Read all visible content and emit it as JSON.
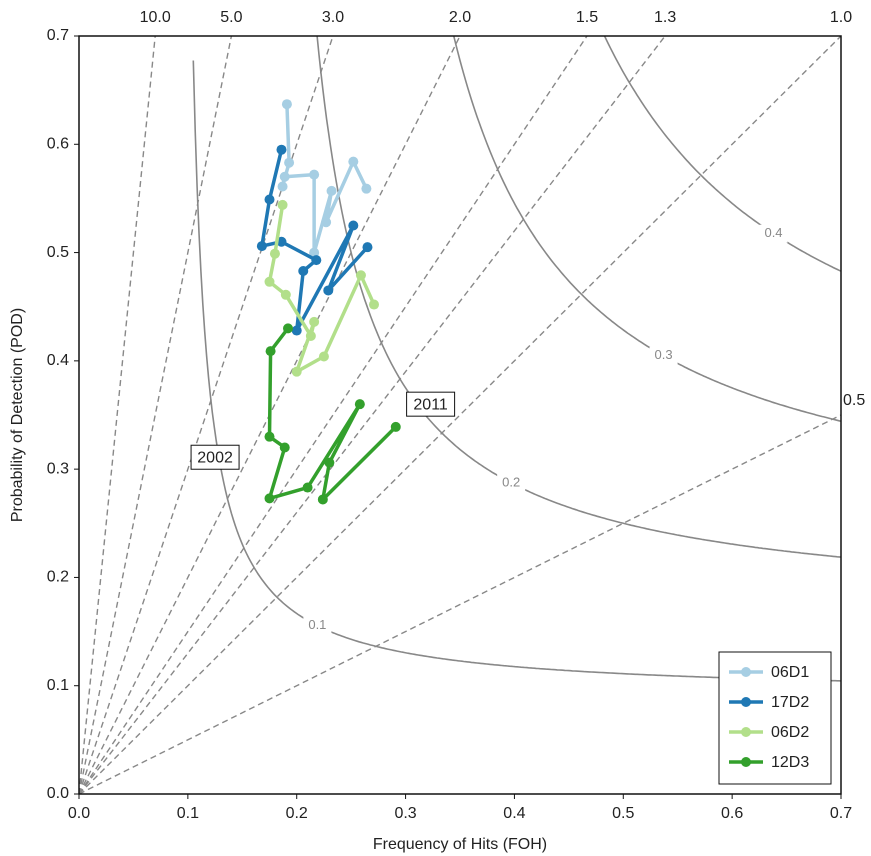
{
  "chart_data": {
    "type": "line",
    "x_label": "Frequency of Hits (FOH)",
    "y_label": "Probability of Detection (POD)",
    "xlim": [
      0,
      0.7
    ],
    "ylim": [
      0,
      0.7
    ],
    "xticks": [
      {
        "value": 0,
        "label": "0.0"
      },
      0.1,
      0.2,
      0.3,
      0.4,
      0.5,
      0.6,
      0.7
    ],
    "yticks": [
      {
        "value": 0,
        "label": "0.0"
      },
      0.1,
      0.2,
      0.3,
      0.4,
      0.5,
      0.6,
      0.7
    ],
    "bias_lines": [
      {
        "value": 10,
        "label": "10.0"
      },
      {
        "value": 5,
        "label": "5.0"
      },
      {
        "value": 3,
        "label": "3.0"
      },
      {
        "value": 2,
        "label": "2.0"
      },
      1.5,
      1.3,
      {
        "value": 1,
        "label": "1.0"
      },
      0.5
    ],
    "csi_contours": [
      0.1,
      0.2,
      0.3,
      0.4
    ],
    "legend": "lower right",
    "annotations": [
      {
        "text": "2002",
        "x": 0.125,
        "y": 0.311
      },
      {
        "text": "2011",
        "x": 0.323,
        "y": 0.36
      }
    ],
    "series": [
      {
        "name": "06D1",
        "color": "#a6cee3",
        "x": [
          0.191,
          0.193,
          0.187,
          0.189,
          0.216,
          0.216,
          0.232,
          0.227,
          0.252,
          0.264
        ],
        "values": [
          0.637,
          0.583,
          0.561,
          0.57,
          0.572,
          0.5,
          0.557,
          0.528,
          0.584,
          0.559
        ]
      },
      {
        "name": "17D2",
        "color": "#1f78b4",
        "x": [
          0.186,
          0.175,
          0.168,
          0.186,
          0.218,
          0.206,
          0.2,
          0.252,
          0.229,
          0.265
        ],
        "values": [
          0.595,
          0.549,
          0.506,
          0.51,
          0.493,
          0.483,
          0.428,
          0.525,
          0.465,
          0.505
        ]
      },
      {
        "name": "06D2",
        "color": "#b2df8a",
        "x": [
          0.187,
          0.18,
          0.175,
          0.19,
          0.213,
          0.216,
          0.2,
          0.225,
          0.259,
          0.271
        ],
        "values": [
          0.544,
          0.499,
          0.473,
          0.461,
          0.423,
          0.436,
          0.39,
          0.404,
          0.479,
          0.452
        ]
      },
      {
        "name": "12D3",
        "color": "#33a02c",
        "x": [
          0.192,
          0.176,
          0.175,
          0.189,
          0.175,
          0.21,
          0.258,
          0.23,
          0.224,
          0.291
        ],
        "values": [
          0.43,
          0.409,
          0.33,
          0.32,
          0.273,
          0.283,
          0.36,
          0.306,
          0.272,
          0.339
        ]
      }
    ]
  }
}
